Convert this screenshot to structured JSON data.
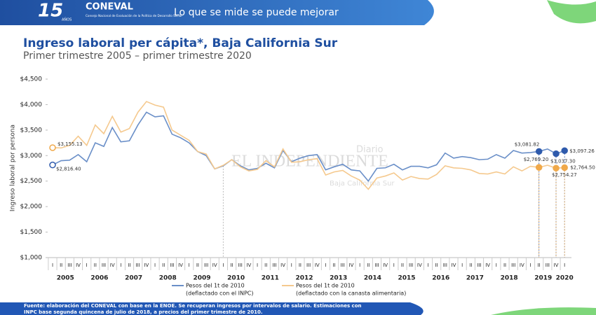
{
  "header": {
    "logo_number": "15",
    "logo_years": "AÑOS",
    "org": "CONEVAL",
    "org_full": "Consejo Nacional de Evaluación de la Política de Desarrollo Social",
    "tagline": "Lo que se mide se puede mejorar"
  },
  "chart_data": {
    "type": "line",
    "title": "Ingreso laboral per cápita*, Baja California Sur",
    "subtitle": "Primer trimestre 2005 – primer trimestre 2020",
    "y_label": "Ingreso laboral por persona",
    "categories": [
      "I",
      "II",
      "III",
      "IV",
      "I",
      "II",
      "III",
      "IV",
      "I",
      "II",
      "III",
      "IV",
      "I",
      "II",
      "III",
      "IV",
      "I",
      "II",
      "III",
      "IV",
      "I",
      "II",
      "III",
      "IV",
      "I",
      "II",
      "III",
      "IV",
      "I",
      "II",
      "III",
      "IV",
      "I",
      "II",
      "III",
      "IV",
      "I",
      "II",
      "III",
      "IV",
      "I",
      "II",
      "III",
      "IV",
      "I",
      "II",
      "III",
      "IV",
      "I",
      "II",
      "III",
      "IV",
      "I",
      "II",
      "III",
      "IV",
      "I",
      "II",
      "III",
      "IV",
      "I"
    ],
    "years": [
      "2005",
      "2006",
      "2007",
      "2008",
      "2009",
      "2010",
      "2011",
      "2012",
      "2013",
      "2014",
      "2015",
      "2016",
      "2017",
      "2018",
      "2019",
      "2020"
    ],
    "ylim": [
      1000,
      4500
    ],
    "yticks": [
      {
        "value": 1000,
        "label": "$1,000"
      },
      {
        "value": 1500,
        "label": "$1,500"
      },
      {
        "value": 2000,
        "label": "$2,000"
      },
      {
        "value": 2500,
        "label": "$2,500"
      },
      {
        "value": 3000,
        "label": "$3,000"
      },
      {
        "value": 3500,
        "label": "$3,500"
      },
      {
        "value": 4000,
        "label": "$4,000"
      },
      {
        "value": 4500,
        "label": "$4,500"
      }
    ],
    "series": [
      {
        "name": "Pesos del 1t de 2010",
        "name_note": "(deflactado con el INPC)",
        "color": "#6a8fc8",
        "marker_color": "#2e5aac",
        "values": [
          2816.4,
          2900,
          2910,
          3020,
          2880,
          3250,
          3180,
          3550,
          3270,
          3290,
          3600,
          3850,
          3760,
          3780,
          3420,
          3350,
          3250,
          3080,
          3000,
          2740,
          2800,
          2920,
          2800,
          2720,
          2750,
          2850,
          2760,
          3100,
          2880,
          2950,
          3000,
          3020,
          2720,
          2780,
          2830,
          2720,
          2700,
          2500,
          2750,
          2760,
          2830,
          2720,
          2790,
          2790,
          2760,
          2820,
          3050,
          2950,
          2980,
          2960,
          2920,
          2930,
          3020,
          2950,
          3100,
          3050,
          3060,
          3081.82,
          3130,
          3037.3,
          3097.26
        ],
        "value_labels": [
          "$2,816.40",
          null,
          null,
          null,
          null,
          null,
          null,
          null,
          null,
          null,
          null,
          null,
          null,
          null,
          null,
          null,
          null,
          null,
          null,
          null,
          null,
          null,
          null,
          null,
          null,
          null,
          null,
          null,
          null,
          null,
          null,
          null,
          null,
          null,
          null,
          null,
          null,
          null,
          null,
          null,
          null,
          null,
          null,
          null,
          null,
          null,
          null,
          null,
          null,
          null,
          null,
          null,
          null,
          null,
          null,
          null,
          null,
          "$3,081.82",
          null,
          "$3,037.30",
          "$3,097.26"
        ]
      },
      {
        "name": "Pesos del 1t de 2010",
        "name_note": "(deflactado con la canasta alimentaria)",
        "color": "#f5c98e",
        "marker_color": "#f0a94a",
        "values": [
          3155.13,
          3150,
          3200,
          3380,
          3200,
          3600,
          3430,
          3770,
          3460,
          3530,
          3850,
          4060,
          3990,
          3950,
          3500,
          3400,
          3300,
          3080,
          3030,
          2740,
          2810,
          2920,
          2780,
          2700,
          2730,
          2900,
          2780,
          3130,
          2870,
          2880,
          2920,
          2940,
          2620,
          2680,
          2710,
          2600,
          2520,
          2340,
          2560,
          2600,
          2660,
          2520,
          2590,
          2550,
          2540,
          2630,
          2800,
          2760,
          2750,
          2720,
          2650,
          2640,
          2680,
          2640,
          2780,
          2700,
          2790,
          2769.2,
          2810,
          2754.27,
          2764.5
        ],
        "value_labels": [
          "$3,155.13",
          null,
          null,
          null,
          null,
          null,
          null,
          null,
          null,
          null,
          null,
          null,
          null,
          null,
          null,
          null,
          null,
          null,
          null,
          null,
          null,
          null,
          null,
          null,
          null,
          null,
          null,
          null,
          null,
          null,
          null,
          null,
          null,
          null,
          null,
          null,
          null,
          null,
          null,
          null,
          null,
          null,
          null,
          null,
          null,
          null,
          null,
          null,
          null,
          null,
          null,
          null,
          null,
          null,
          null,
          null,
          null,
          "$2,769.20",
          null,
          "$2,754.27",
          "$2,764.50"
        ]
      }
    ]
  },
  "watermark": {
    "brand": "EL INDEPENDIENTE",
    "kind": "Diario",
    "region": "Baja California Sur"
  },
  "footer": {
    "line1": "Fuente: elaboración del CONEVAL con base en la ENOE. Se recuperan ingresos por intervalos de salario. Estimaciones con",
    "line2": "INPC base segunda quincena de julio de 2018, a precios del primer trimestre de 2010."
  }
}
